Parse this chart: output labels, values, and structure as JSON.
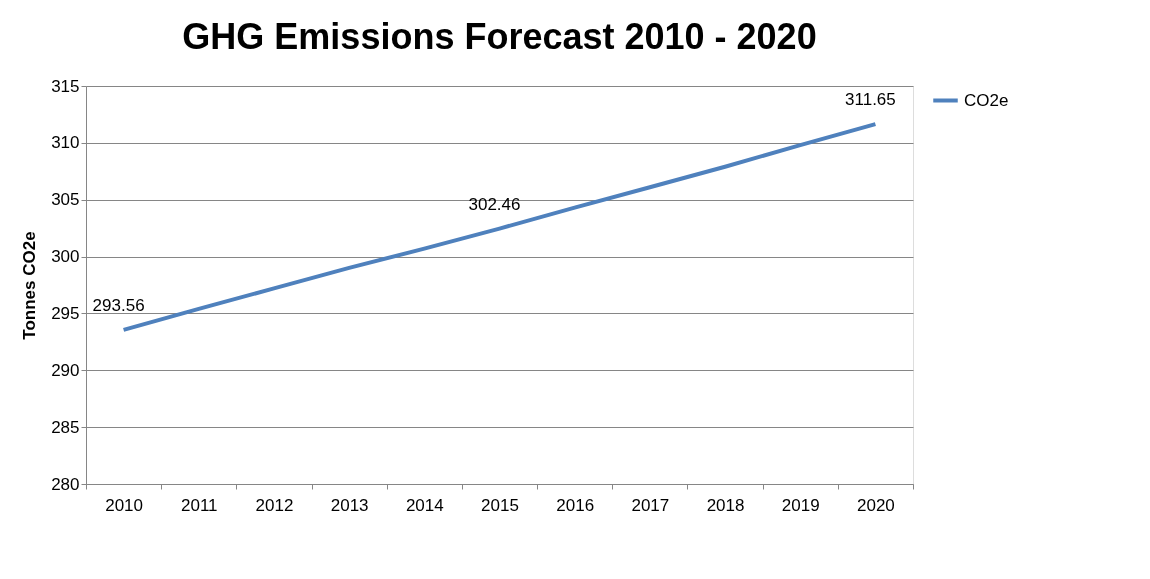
{
  "chart_data": {
    "type": "line",
    "title": "GHG Emissions Forecast 2010 - 2020",
    "ylabel": "Tonnes CO2e",
    "categories": [
      "2010",
      "2011",
      "2012",
      "2013",
      "2014",
      "2015",
      "2016",
      "2017",
      "2018",
      "2019",
      "2020"
    ],
    "series": [
      {
        "name": "CO2e",
        "color": "#4f81bd",
        "values": [
          293.56,
          295.4,
          297.2,
          299.0,
          300.7,
          302.46,
          304.3,
          306.1,
          307.9,
          309.8,
          311.65
        ],
        "value_labels": [
          "293.56",
          null,
          null,
          null,
          null,
          "302.46",
          null,
          null,
          null,
          null,
          "311.65"
        ]
      }
    ],
    "ylim": [
      280,
      315
    ],
    "yticks": [
      280,
      285,
      290,
      295,
      300,
      305,
      310,
      315
    ],
    "grid": "y",
    "legend": "right",
    "marker": "none",
    "line_style": "solid"
  }
}
